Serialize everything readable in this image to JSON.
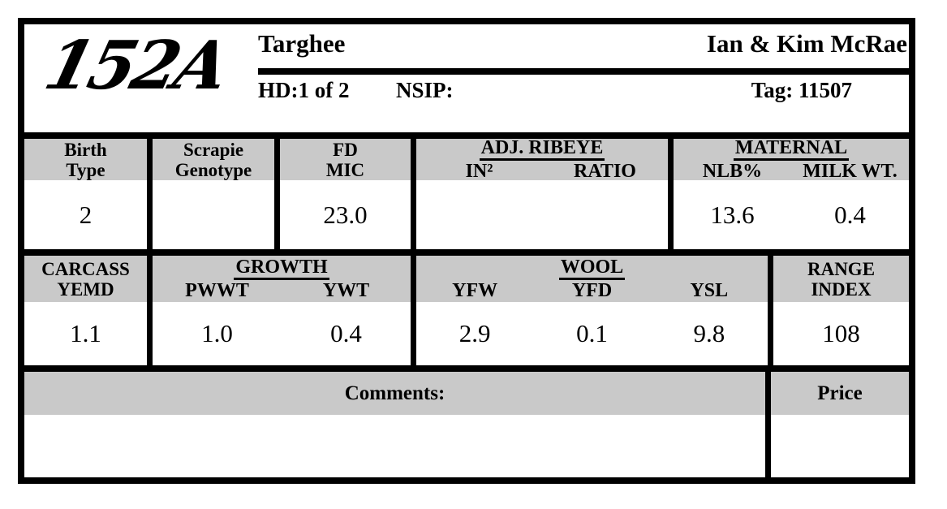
{
  "header": {
    "animal_id": "152A",
    "breed": "Targhee",
    "owner": "Ian & Kim McRae",
    "hd_label": "HD:1 of 2",
    "nsip_label": "NSIP:",
    "tag_label": "Tag: 11507"
  },
  "row1": {
    "birth_type": {
      "label_line1": "Birth",
      "label_line2": "Type",
      "value": "2"
    },
    "scrapie": {
      "label_line1": "Scrapie",
      "label_line2": "Genotype",
      "value": ""
    },
    "fd_mic": {
      "label_line1": "FD",
      "label_line2": "MIC",
      "value": "23.0"
    },
    "adj_ribeye": {
      "group_label": "ADJ. RIBEYE",
      "col1_label": "IN²",
      "col2_label": "RATIO",
      "col1_value": "",
      "col2_value": ""
    },
    "maternal": {
      "group_label": "MATERNAL",
      "col1_label": "NLB%",
      "col2_label": "MILK WT.",
      "col1_value": "13.6",
      "col2_value": "0.4"
    }
  },
  "row2": {
    "carcass": {
      "label_line1": "CARCASS",
      "label_line2": "YEMD",
      "value": "1.1"
    },
    "growth": {
      "group_label": "GROWTH",
      "col1_label": "PWWT",
      "col2_label": "YWT",
      "col1_value": "1.0",
      "col2_value": "0.4"
    },
    "wool": {
      "group_label": "WOOL",
      "col1_label": "YFW",
      "col2_label": "YFD",
      "col3_label": "YSL",
      "col1_value": "2.9",
      "col2_value": "0.1",
      "col3_value": "9.8"
    },
    "range_index": {
      "label_line1": "RANGE",
      "label_line2": "INDEX",
      "value": "108"
    }
  },
  "footer": {
    "comments_label": "Comments:",
    "comments_value": "",
    "price_label": "Price",
    "price_value": ""
  },
  "colors": {
    "band_grey": "#c9c9c9",
    "border_black": "#000000"
  }
}
